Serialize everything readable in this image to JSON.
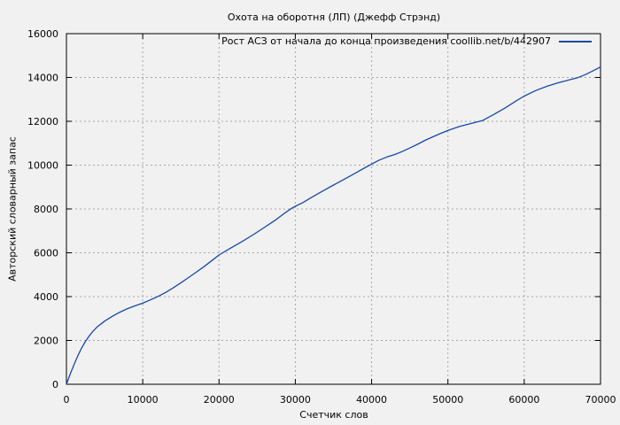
{
  "colors": {
    "background": "#f1f1f1",
    "plot_border": "#000000",
    "grid": "#a6a6a6",
    "text": "#000000",
    "line": "#1648a8"
  },
  "chart_data": {
    "type": "line",
    "title": "Охота на оборотня (ЛП) (Джефф Стрэнд)",
    "xlabel": "Счетчик слов",
    "ylabel": "Авторский словарный запас",
    "xlim": [
      0,
      70000
    ],
    "ylim": [
      0,
      16000
    ],
    "xticks": [
      0,
      10000,
      20000,
      30000,
      40000,
      50000,
      60000,
      70000
    ],
    "yticks": [
      0,
      2000,
      4000,
      6000,
      8000,
      10000,
      12000,
      14000,
      16000
    ],
    "grid": true,
    "grid_style": "dashed",
    "legend_position": "top-right-inside",
    "series": [
      {
        "name": "Рост АСЗ от начала до конца произведения coollib.net/b/442907",
        "color": "#1648a8",
        "points": [
          [
            0,
            0
          ],
          [
            500,
            470
          ],
          [
            1000,
            900
          ],
          [
            1500,
            1300
          ],
          [
            2000,
            1660
          ],
          [
            2500,
            1960
          ],
          [
            3000,
            2210
          ],
          [
            3500,
            2430
          ],
          [
            4000,
            2610
          ],
          [
            5000,
            2880
          ],
          [
            6000,
            3100
          ],
          [
            7000,
            3290
          ],
          [
            8000,
            3450
          ],
          [
            9000,
            3580
          ],
          [
            10000,
            3700
          ],
          [
            11000,
            3850
          ],
          [
            12000,
            4010
          ],
          [
            13000,
            4190
          ],
          [
            14000,
            4400
          ],
          [
            15000,
            4630
          ],
          [
            16000,
            4870
          ],
          [
            17000,
            5110
          ],
          [
            18000,
            5360
          ],
          [
            19000,
            5630
          ],
          [
            20000,
            5900
          ],
          [
            21500,
            6210
          ],
          [
            23000,
            6510
          ],
          [
            24500,
            6830
          ],
          [
            26000,
            7170
          ],
          [
            27500,
            7520
          ],
          [
            28500,
            7780
          ],
          [
            29500,
            8030
          ],
          [
            30000,
            8120
          ],
          [
            31000,
            8290
          ],
          [
            32000,
            8500
          ],
          [
            33500,
            8800
          ],
          [
            35000,
            9090
          ],
          [
            36500,
            9370
          ],
          [
            38000,
            9660
          ],
          [
            39000,
            9860
          ],
          [
            40000,
            10050
          ],
          [
            41000,
            10230
          ],
          [
            42000,
            10370
          ],
          [
            43000,
            10480
          ],
          [
            44000,
            10620
          ],
          [
            45000,
            10780
          ],
          [
            46000,
            10950
          ],
          [
            47000,
            11130
          ],
          [
            48000,
            11290
          ],
          [
            49000,
            11440
          ],
          [
            50000,
            11580
          ],
          [
            51500,
            11760
          ],
          [
            53000,
            11900
          ],
          [
            54500,
            12030
          ],
          [
            56000,
            12310
          ],
          [
            57500,
            12610
          ],
          [
            59000,
            12940
          ],
          [
            60000,
            13150
          ],
          [
            61500,
            13400
          ],
          [
            63000,
            13600
          ],
          [
            64500,
            13760
          ],
          [
            66000,
            13900
          ],
          [
            67000,
            13990
          ],
          [
            68000,
            14130
          ],
          [
            69000,
            14300
          ],
          [
            70000,
            14480
          ]
        ]
      }
    ]
  }
}
